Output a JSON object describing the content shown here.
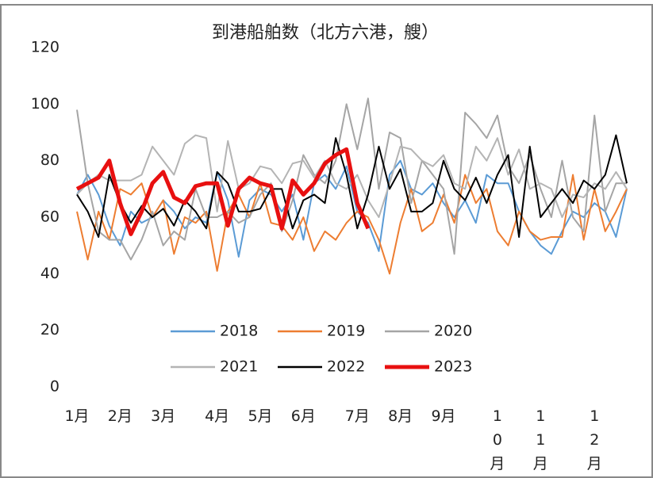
{
  "chart_data": {
    "type": "line",
    "title": "到港船舶数（北方六港，艘）",
    "categories": [
      "1月",
      null,
      null,
      null,
      "2月",
      null,
      null,
      null,
      "3月",
      null,
      null,
      null,
      null,
      "4月",
      null,
      null,
      null,
      "5月",
      null,
      null,
      null,
      "6月",
      null,
      null,
      null,
      null,
      "7月",
      null,
      null,
      null,
      "8月",
      null,
      null,
      null,
      "9月",
      null,
      null,
      null,
      null,
      "10月",
      null,
      null,
      null,
      "11月",
      null,
      null,
      null,
      null,
      "12月",
      null,
      null,
      null
    ],
    "series": [
      {
        "name": "2018",
        "color": "#5b9bd5",
        "values": [
          68,
          75,
          68,
          57,
          50,
          62,
          58,
          60,
          66,
          62,
          56,
          60,
          58,
          76,
          66,
          46,
          66,
          70,
          68,
          62,
          68,
          52,
          72,
          75,
          70,
          78,
          62,
          58,
          48,
          75,
          80,
          70,
          68,
          72,
          65,
          60,
          66,
          58,
          75,
          72,
          72,
          62,
          55,
          50,
          47,
          55,
          62,
          60,
          65,
          62,
          53,
          70
        ]
      },
      {
        "name": "2019",
        "color": "#ed7d31",
        "values": [
          62,
          45,
          62,
          52,
          70,
          68,
          72,
          60,
          66,
          47,
          60,
          58,
          62,
          41,
          62,
          68,
          60,
          72,
          58,
          57,
          52,
          60,
          48,
          55,
          52,
          58,
          62,
          60,
          52,
          40,
          58,
          70,
          55,
          58,
          68,
          58,
          75,
          65,
          70,
          55,
          50,
          62,
          55,
          52,
          53,
          53,
          75,
          52,
          70,
          55,
          62,
          70
        ]
      },
      {
        "name": "2020",
        "color": "#a5a5a5",
        "values": [
          98,
          72,
          55,
          52,
          52,
          45,
          52,
          62,
          50,
          55,
          52,
          70,
          60,
          60,
          62,
          58,
          60,
          68,
          72,
          55,
          66,
          82,
          75,
          72,
          80,
          100,
          84,
          102,
          70,
          90,
          88,
          65,
          80,
          75,
          70,
          47,
          97,
          93,
          88,
          96,
          78,
          72,
          82,
          70,
          60,
          80,
          60,
          55,
          96,
          62,
          72,
          72
        ]
      },
      {
        "name": "2021",
        "color": "#b4b4b4",
        "values": [
          68,
          72,
          75,
          73,
          73,
          73,
          75,
          85,
          80,
          75,
          86,
          89,
          88,
          62,
          87,
          70,
          72,
          78,
          77,
          72,
          79,
          80,
          74,
          80,
          72,
          70,
          75,
          66,
          60,
          72,
          85,
          84,
          80,
          78,
          82,
          72,
          70,
          85,
          80,
          88,
          75,
          84,
          70,
          72,
          70,
          60,
          68,
          67,
          72,
          70,
          76,
          70
        ]
      },
      {
        "name": "2022",
        "color": "#000000",
        "values": [
          68,
          62,
          53,
          75,
          65,
          58,
          64,
          60,
          63,
          57,
          66,
          62,
          56,
          76,
          72,
          62,
          62,
          63,
          70,
          70,
          56,
          66,
          68,
          65,
          88,
          75,
          56,
          68,
          85,
          70,
          77,
          62,
          62,
          65,
          80,
          70,
          66,
          74,
          65,
          75,
          82,
          53,
          85,
          60,
          65,
          70,
          65,
          73,
          70,
          75,
          89,
          72
        ]
      },
      {
        "name": "2023",
        "color": "#e81010",
        "width": 5,
        "values": [
          70,
          72,
          74,
          80,
          65,
          54,
          62,
          72,
          76,
          67,
          65,
          71,
          72,
          72,
          57,
          70,
          74,
          72,
          71,
          56,
          73,
          68,
          72,
          79,
          82,
          84,
          65,
          56,
          null,
          null,
          null,
          null,
          null,
          null,
          null,
          null,
          null,
          null,
          null,
          null,
          null,
          null,
          null,
          null,
          null,
          null,
          null,
          null,
          null,
          null,
          null,
          null
        ]
      }
    ],
    "ylim": [
      0,
      120
    ],
    "yticks": [
      0,
      20,
      40,
      60,
      80,
      100,
      120
    ],
    "grid": false
  }
}
